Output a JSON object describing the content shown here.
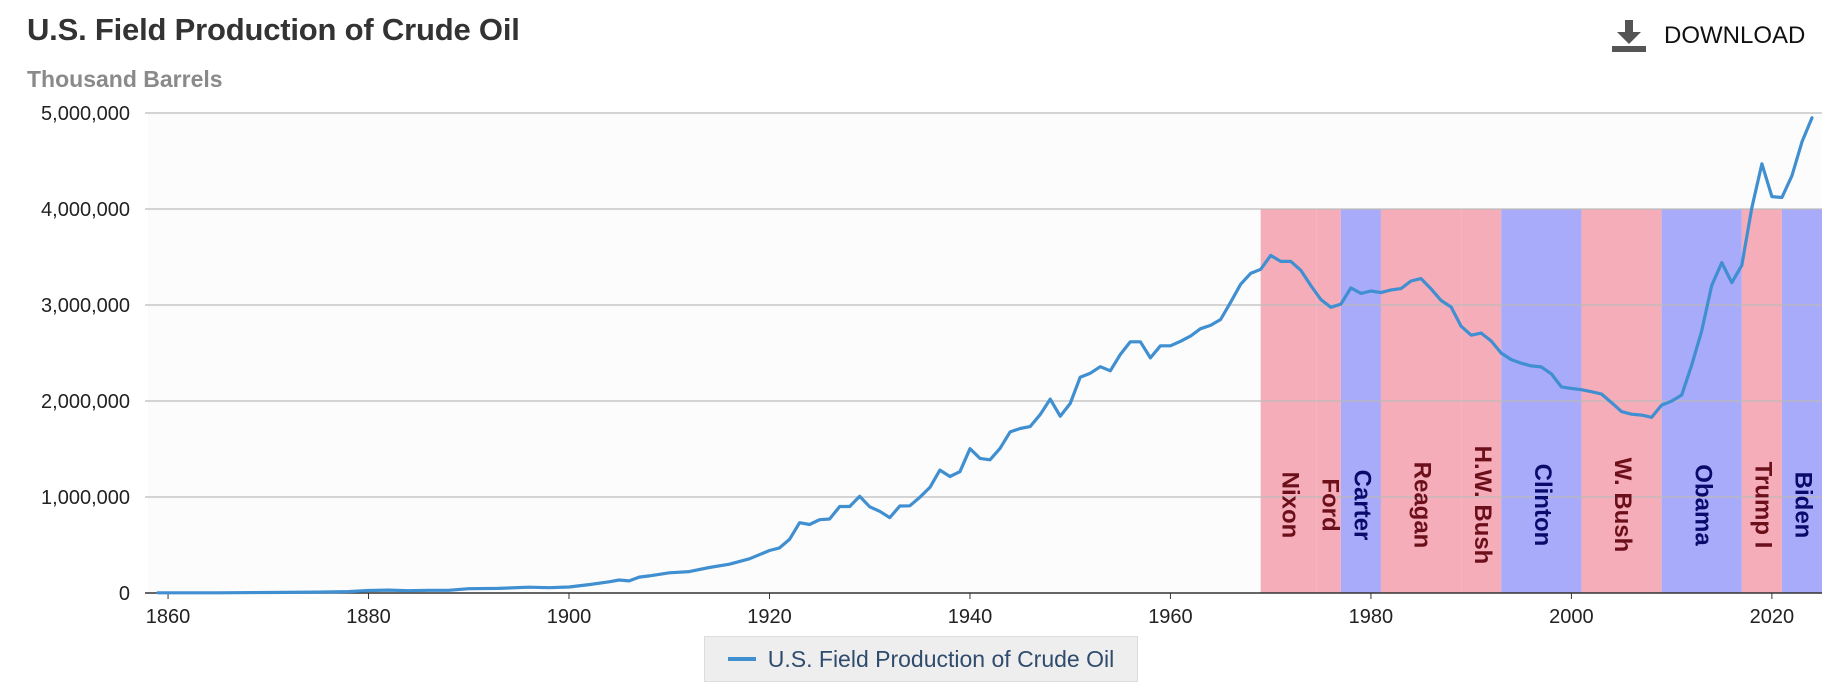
{
  "header": {
    "title": "U.S. Field Production of Crude Oil",
    "subtitle": "Thousand Barrels",
    "download_label": "DOWNLOAD"
  },
  "legend": {
    "label": "U.S. Field Production of Crude Oil"
  },
  "colors": {
    "series": "#3f8fd1",
    "republican": "#f6a9b6",
    "democrat": "#a3a5fa",
    "republican_text": "#6b0f1a",
    "democrat_text": "#0a0a6b",
    "grid": "#bbbbbb",
    "axis_text": "#222222"
  },
  "chart_data": {
    "type": "line",
    "title": "U.S. Field Production of Crude Oil",
    "ylabel": "Thousand Barrels",
    "xlim": [
      1858,
      2025
    ],
    "ylim": [
      0,
      5000000
    ],
    "x_ticks": [
      "1860",
      "1880",
      "1900",
      "1920",
      "1940",
      "1960",
      "1980",
      "2000",
      "2020"
    ],
    "y_ticks": [
      "0",
      "1,000,000",
      "2,000,000",
      "3,000,000",
      "4,000,000",
      "5,000,000"
    ],
    "grid": true,
    "legend_position": "bottom",
    "series": [
      {
        "name": "U.S. Field Production of Crude Oil",
        "x": [
          1859,
          1865,
          1870,
          1875,
          1878,
          1880,
          1882,
          1884,
          1886,
          1888,
          1890,
          1893,
          1896,
          1898,
          1900,
          1902,
          1904,
          1905,
          1906,
          1907,
          1908,
          1910,
          1912,
          1914,
          1916,
          1918,
          1920,
          1921,
          1922,
          1923,
          1924,
          1925,
          1926,
          1927,
          1928,
          1929,
          1930,
          1931,
          1932,
          1933,
          1934,
          1935,
          1936,
          1937,
          1938,
          1939,
          1940,
          1941,
          1942,
          1943,
          1944,
          1945,
          1946,
          1947,
          1948,
          1949,
          1950,
          1951,
          1952,
          1953,
          1954,
          1955,
          1956,
          1957,
          1958,
          1959,
          1960,
          1961,
          1962,
          1963,
          1964,
          1965,
          1966,
          1967,
          1968,
          1969,
          1970,
          1971,
          1972,
          1973,
          1974,
          1975,
          1976,
          1977,
          1978,
          1979,
          1980,
          1981,
          1982,
          1983,
          1984,
          1985,
          1986,
          1987,
          1988,
          1989,
          1990,
          1991,
          1992,
          1993,
          1994,
          1995,
          1996,
          1997,
          1998,
          1999,
          2000,
          2001,
          2002,
          2003,
          2004,
          2005,
          2006,
          2007,
          2008,
          2009,
          2010,
          2011,
          2012,
          2013,
          2014,
          2015,
          2016,
          2017,
          2018,
          2019,
          2020,
          2021,
          2022,
          2023,
          2024
        ],
        "values": [
          2000,
          2500,
          5000,
          9000,
          15000,
          26000,
          30000,
          24000,
          28000,
          28000,
          45000,
          48000,
          60000,
          55000,
          63000,
          88000,
          117000,
          135000,
          126000,
          166000,
          178000,
          210000,
          223000,
          266000,
          300000,
          356000,
          443000,
          470000,
          558000,
          732000,
          714000,
          764000,
          771000,
          901000,
          901000,
          1007000,
          898000,
          851000,
          785000,
          906000,
          908000,
          997000,
          1100000,
          1280000,
          1214000,
          1264000,
          1503000,
          1402000,
          1387000,
          1506000,
          1678000,
          1714000,
          1733000,
          1857000,
          2020000,
          1842000,
          1974000,
          2248000,
          2290000,
          2357000,
          2315000,
          2484000,
          2617000,
          2617000,
          2449000,
          2575000,
          2575000,
          2622000,
          2676000,
          2753000,
          2787000,
          2849000,
          3028000,
          3216000,
          3329000,
          3372000,
          3517000,
          3454000,
          3455000,
          3361000,
          3203000,
          3057000,
          2976000,
          3009000,
          3178000,
          3121000,
          3146000,
          3129000,
          3157000,
          3171000,
          3250000,
          3275000,
          3168000,
          3047000,
          2979000,
          2779000,
          2685000,
          2707000,
          2625000,
          2499000,
          2431000,
          2394000,
          2366000,
          2355000,
          2282000,
          2147000,
          2131000,
          2118000,
          2097000,
          2073000,
          1983000,
          1890000,
          1862000,
          1853000,
          1830000,
          1957000,
          1999000,
          2062000,
          2374000,
          2730000,
          3203000,
          3442000,
          3232000,
          3414000,
          4011000,
          4471000,
          4129000,
          4120000,
          4346000,
          4700000,
          4950000
        ]
      }
    ],
    "presidents": [
      {
        "name": "Nixon",
        "party": "republican",
        "start": 1969,
        "end": 1974.6
      },
      {
        "name": "Ford",
        "party": "republican",
        "start": 1974.6,
        "end": 1977
      },
      {
        "name": "Carter",
        "party": "democrat",
        "start": 1977,
        "end": 1981
      },
      {
        "name": "Reagan",
        "party": "republican",
        "start": 1981,
        "end": 1989
      },
      {
        "name": "H.W. Bush",
        "party": "republican",
        "start": 1989,
        "end": 1993
      },
      {
        "name": "Clinton",
        "party": "democrat",
        "start": 1993,
        "end": 2001
      },
      {
        "name": "W. Bush",
        "party": "republican",
        "start": 2001,
        "end": 2009
      },
      {
        "name": "Obama",
        "party": "democrat",
        "start": 2009,
        "end": 2017
      },
      {
        "name": "Trump I",
        "party": "republican",
        "start": 2017,
        "end": 2021
      },
      {
        "name": "Biden",
        "party": "democrat",
        "start": 2021,
        "end": 2025
      }
    ],
    "band_top": 4000000
  }
}
